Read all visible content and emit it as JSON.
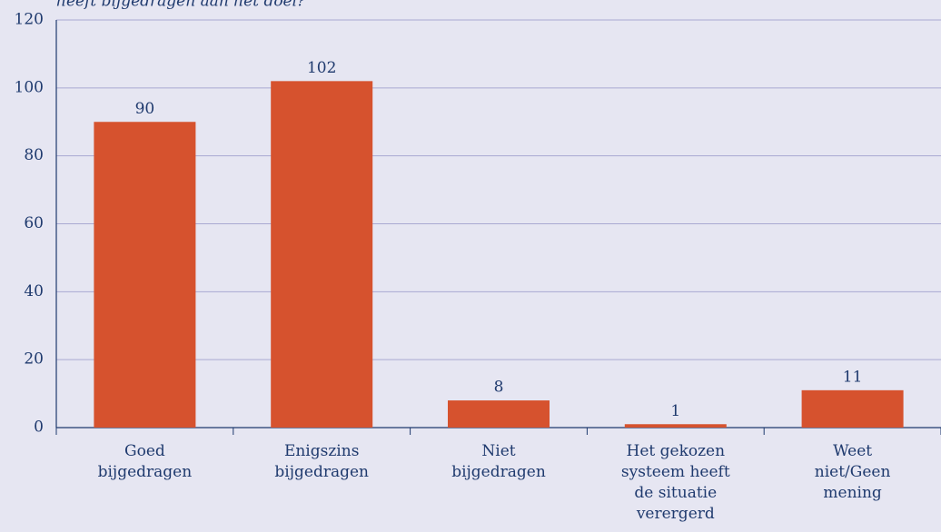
{
  "chart_data": {
    "type": "bar",
    "title": "heeft bijgedragen aan het doel?",
    "categories": [
      "Goed\nbijgedragen",
      "Enigszins\nbijgedragen",
      "Niet\nbijgedragen",
      "Het gekozen\nsysteem heeft\nde situatie\nverergerd",
      "Weet\nniet/Geen\nmening"
    ],
    "values": [
      90,
      102,
      8,
      1,
      11
    ],
    "color": "#d6522e",
    "ylim": [
      0,
      120
    ],
    "yticks": [
      0,
      20,
      40,
      60,
      80,
      100,
      120
    ],
    "grid": true
  }
}
